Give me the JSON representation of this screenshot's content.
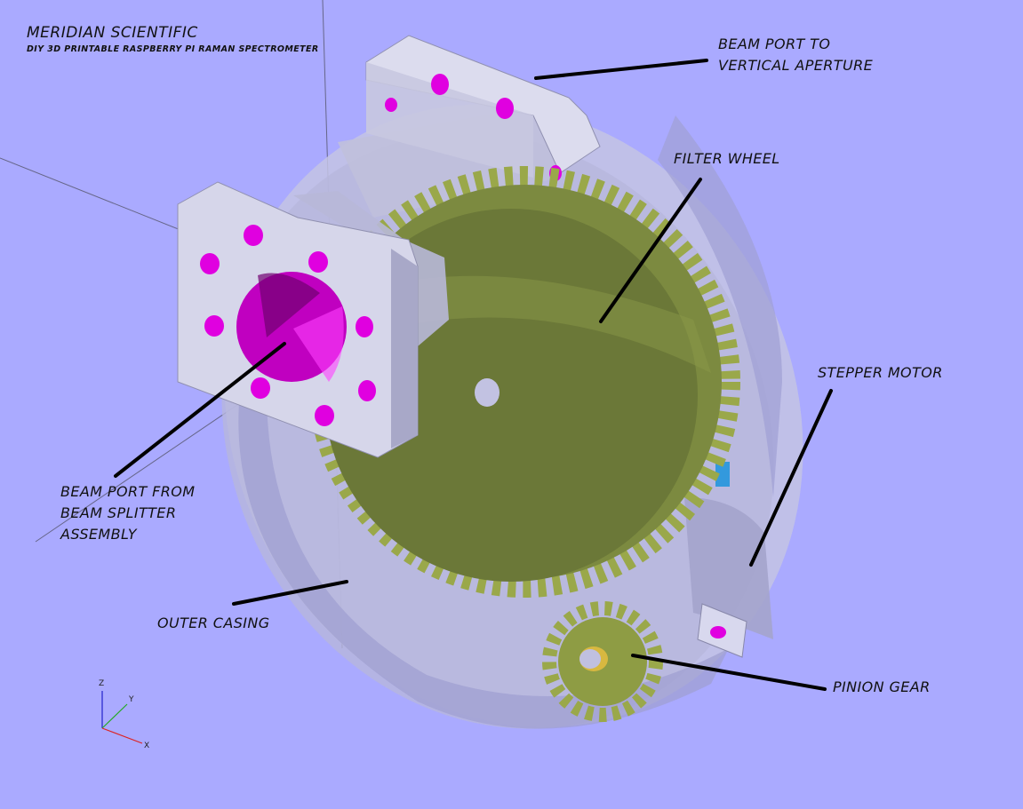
{
  "header": {
    "title": "MERIDIAN SCIENTIFIC",
    "subtitle": "DIY 3D PRINTABLE RASPBERRY PI RAMAN SPECTROMETER"
  },
  "labels": {
    "beam_port_vertical_line1": "BEAM PORT TO",
    "beam_port_vertical_line2": "VERTICAL APERTURE",
    "filter_wheel": "FILTER WHEEL",
    "stepper_motor": "STEPPER MOTOR",
    "beam_port_splitter_line1": "BEAM PORT FROM",
    "beam_port_splitter_line2": "BEAM SPLITTER",
    "beam_port_splitter_line3": "ASSEMBLY",
    "outer_casing": "OUTER CASING",
    "pinion_gear": "PINION GEAR"
  },
  "axes": {
    "z": "Z",
    "y": "Y",
    "x": "X"
  },
  "colors": {
    "background": "#aaaaff",
    "casing": "#c8c8e6",
    "gear": "#9aa84a",
    "gear_dark": "#6f7a3a",
    "port": "#d4d4e8",
    "hole": "#e000e0",
    "axis_x": "#dd2222",
    "axis_y": "#22aa22",
    "axis_z": "#2222cc"
  }
}
